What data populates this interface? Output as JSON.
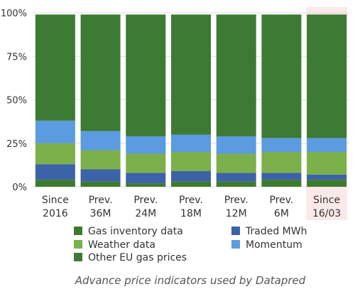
{
  "chart_data": {
    "type": "bar",
    "stacked": true,
    "categories": [
      [
        "Since",
        "2016"
      ],
      [
        "Prev.",
        "36M"
      ],
      [
        "Prev.",
        "24M"
      ],
      [
        "Prev.",
        "18M"
      ],
      [
        "Prev.",
        "12M"
      ],
      [
        "Prev.",
        "6M"
      ],
      [
        "Since",
        "16/03"
      ]
    ],
    "series": [
      {
        "name": "Gas inventory data",
        "color": "#3e7a2e",
        "values": [
          4,
          3,
          2,
          3,
          3,
          4,
          4
        ]
      },
      {
        "name": "Traded MWh",
        "color": "#3c62a8",
        "values": [
          9,
          7,
          6,
          6,
          5,
          4,
          3
        ]
      },
      {
        "name": "Weather data",
        "color": "#7bb04a",
        "values": [
          12,
          11,
          11,
          11,
          11,
          12,
          13
        ]
      },
      {
        "name": "Momentum",
        "color": "#5b9be0",
        "values": [
          13,
          11,
          10,
          10,
          10,
          8,
          8
        ]
      },
      {
        "name": "Other EU gas prices",
        "color": "#3d7a33",
        "values": [
          61,
          67,
          70,
          69,
          70,
          71,
          71
        ]
      }
    ],
    "legend_order": [
      "Gas inventory data",
      "Traded MWh",
      "Weather data",
      "Momentum",
      "Other EU gas prices"
    ],
    "yticks": [
      "0%",
      "25%",
      "50%",
      "75%",
      "100%"
    ],
    "ylim": [
      0,
      100
    ],
    "highlight_category_index": 6,
    "highlight_color": "#fbe9e9",
    "grid": true,
    "legend_position": "bottom",
    "caption": "Advance price indicators used by Datapred"
  }
}
